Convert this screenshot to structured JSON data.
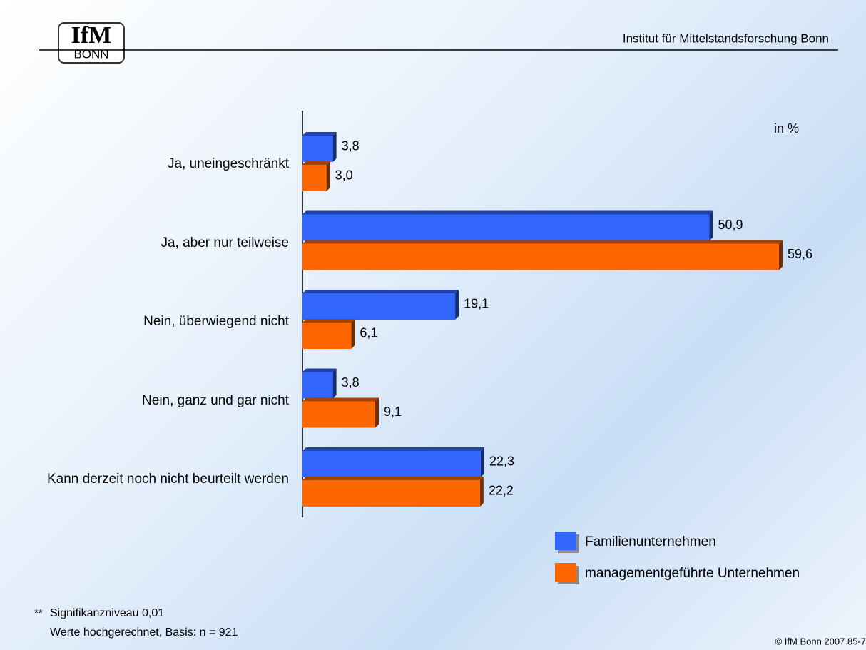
{
  "header": {
    "logo_top": "IfM",
    "logo_bottom": "BONN",
    "institute": "Institut für Mittelstandsforschung Bonn"
  },
  "chart_data": {
    "type": "bar",
    "orientation": "horizontal",
    "unit_note": "in %",
    "categories": [
      "Ja, uneingeschränkt",
      "Ja, aber nur teilweise",
      "Nein, überwiegend nicht",
      "Nein, ganz und gar nicht",
      "Kann derzeit noch nicht beurteilt werden"
    ],
    "series": [
      {
        "name": "Familienunternehmen",
        "color": "#3366ff",
        "values": [
          3.8,
          50.9,
          19.1,
          3.8,
          22.3
        ],
        "value_labels": [
          "3,8",
          "50,9",
          "19,1",
          "3,8",
          "22,3"
        ]
      },
      {
        "name": "managementgeführte Unternehmen",
        "color": "#ff6600",
        "values": [
          3.0,
          59.6,
          6.1,
          9.1,
          22.2
        ],
        "value_labels": [
          "3,0",
          "59,6",
          "6,1",
          "9,1",
          "22,2"
        ]
      }
    ],
    "legend": "bottom-right"
  },
  "footnote": {
    "marker": "**",
    "lines": [
      "Signifikanzniveau 0,01",
      "Werte hochgerechnet, Basis: n = 921"
    ],
    "copyright": "© IfM Bonn 2007  85-7"
  }
}
